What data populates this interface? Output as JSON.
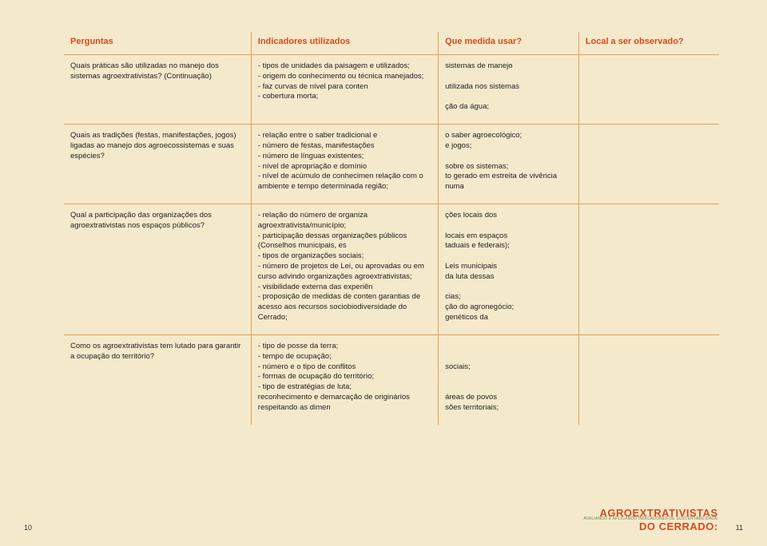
{
  "headers": {
    "c1": "Perguntas",
    "c2": "Indicadores utilizados",
    "c3": "Que medida usar?",
    "c4": "Local a ser observado?"
  },
  "rows": [
    {
      "c1": "Quais práticas são utilizadas no manejo dos sistemas agroextrativistas? (Continuação)",
      "c2": "- tipos de unidades da paisagem e utilizados;\n- origem do conhecimento ou técnica manejados;\n- faz curvas de nível para conten\n- cobertura morta;",
      "c3": "sistemas de manejo\n\nutilizada nos sistemas\n\nção da água;",
      "c4": ""
    },
    {
      "c1": "Quais as tradições (festas, manifestações, jogos) ligadas ao manejo dos agroecossistemas e suas espécies?",
      "c2": "- relação entre o saber tradicional e\n- número de festas, manifestações\n- número de línguas existentes;\n- nível de apropriação e domínio\n- nível de acúmulo de conhecimen relação com o ambiente e tempo determinada região;",
      "c3": "o saber agroecológico;\ne jogos;\n\nsobre os sistemas;\nto gerado em estreita de vivência numa",
      "c4": ""
    },
    {
      "c1": "Qual a participação das organizações dos agroextrativistas nos espaços públicos?",
      "c2": "- relação do número de organiza agroextrativista/município;\n- participação dessas organizações públicos (Conselhos municipais, es\n- tipos de organizações sociais;\n- número de projetos de Lei, ou aprovadas ou em curso advindo organizações  agroextrativistas;\n- visibilidade externa das experiên\n- proposição de medidas de conten garantias de acesso aos recursos sociobiodiversidade do Cerrado;",
      "c3": "ções locais dos\n\nlocais em espaços\ntaduais e federais);\n\nLeis municipais\nda luta dessas\n\ncias;\nção do agronegócio;\ngenéticos da",
      "c4": ""
    },
    {
      "c1": "Como os agroextrativistas tem lutado para garantir a ocupação do território?",
      "c2": "- tipo de posse da terra;\n- tempo de ocupação;\n- número e o tipo de conflitos\n- formas de ocupação do território;\n- tipo de estratégias de luta;\n  reconhecimento e demarcação de originários respeitando as dimen",
      "c3": "\n\nsociais;\n\n\náreas de povos\nsões territoriais;",
      "c4": ""
    }
  ],
  "footer": {
    "pageLeft": "10",
    "pageRight": "11",
    "brandL1": "AGROEXTRATIVISTAS",
    "brandL2": "AVALIANDO E APLICANDO INDICADORES DE SUSTENTABILIDADE",
    "brandL3": "DO CERRADO:"
  },
  "colors": {
    "bg": "#f5e9cc",
    "accent": "#d84a1f",
    "border": "#e0a050",
    "green": "#6a8a52"
  }
}
